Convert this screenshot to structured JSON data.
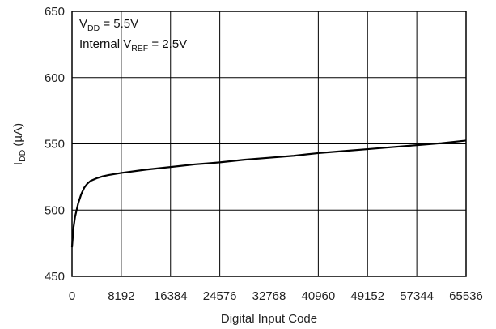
{
  "chart_data": {
    "type": "line",
    "title": "",
    "xlabel": "Digital Input Code",
    "ylabel": {
      "main": "I",
      "sub": "DD",
      "unit": " (µA)"
    },
    "xlim": [
      0,
      65536
    ],
    "ylim": [
      450,
      650
    ],
    "x_ticks": [
      0,
      8192,
      16384,
      24576,
      32768,
      40960,
      49152,
      57344,
      65536
    ],
    "y_ticks": [
      450,
      500,
      550,
      600,
      650
    ],
    "grid": true,
    "annotations": [
      {
        "parts": [
          {
            "t": "V"
          },
          {
            "t": "DD",
            "sub": true
          },
          {
            "t": " = 5.5V"
          }
        ]
      },
      {
        "parts": [
          {
            "t": "Internal V"
          },
          {
            "t": "REF",
            "sub": true
          },
          {
            "t": " = 2.5V"
          }
        ]
      }
    ],
    "series": [
      {
        "color": "#000000",
        "x": [
          0,
          256,
          512,
          1024,
          1536,
          2048,
          2560,
          3072,
          4096,
          5120,
          6144,
          8192,
          12288,
          16384,
          20480,
          24576,
          28672,
          32768,
          36864,
          40960,
          45056,
          49152,
          53248,
          57344,
          61440,
          65536
        ],
        "y": [
          472,
          487,
          495,
          505,
          512,
          517,
          520,
          522,
          524,
          525.5,
          526.5,
          528,
          530.5,
          532.5,
          534.5,
          536,
          538,
          539.5,
          541,
          543,
          544.5,
          546,
          547.5,
          549,
          550.5,
          552.5
        ]
      }
    ]
  }
}
